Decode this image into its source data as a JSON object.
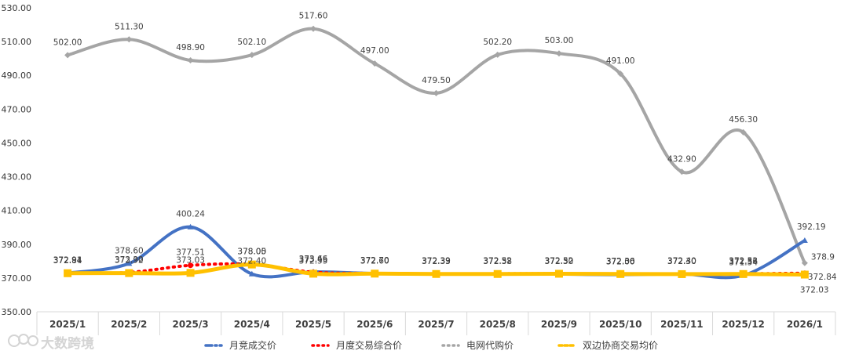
{
  "chart_data": {
    "type": "line",
    "categories": [
      "2025/1",
      "2025/2",
      "2025/3",
      "2025/4",
      "2025/5",
      "2025/6",
      "2025/7",
      "2025/8",
      "2025/9",
      "2025/10",
      "2025/11",
      "2025/12",
      "2026/1"
    ],
    "ylim": [
      350,
      530
    ],
    "yticks": [
      350,
      370,
      390,
      410,
      430,
      450,
      470,
      490,
      510,
      530
    ],
    "ytick_labels": [
      "350.00",
      "370.00",
      "390.00",
      "410.00",
      "430.00",
      "450.00",
      "470.00",
      "490.00",
      "510.00",
      "530.00"
    ],
    "grid": false,
    "legend_position": "bottom",
    "series": [
      {
        "name": "月竞成交价",
        "color": "#4472C4",
        "values": [
          372.94,
          378.6,
          400.24,
          372.4,
          373.66,
          372.7,
          372.39,
          372.52,
          372.3,
          372.0,
          372.4,
          371.54,
          392.19
        ],
        "labels": [
          "372.94",
          "378.60",
          "400.24",
          "372.40",
          "373.66",
          "372.70",
          "372.39",
          "372.52",
          "372.30",
          "372.00",
          "372.40",
          "371.54",
          "392.19"
        ]
      },
      {
        "name": "月度交易综合价",
        "color": "#FF0000",
        "values": [
          372.91,
          373.3,
          377.51,
          378.05,
          373.45,
          372.7,
          372.33,
          372.52,
          372.52,
          372.3,
          372.3,
          372.52,
          372.84
        ],
        "labels": [
          "372.91",
          "373.30",
          "377.51",
          "378.05",
          "373.45",
          "372.70",
          "372.33",
          "372.52",
          "372.52",
          "372.30",
          "372.30",
          "372.52",
          "372.84"
        ]
      },
      {
        "name": "电网代购价",
        "color": "#A5A5A5",
        "values": [
          502.0,
          511.3,
          498.9,
          502.1,
          517.6,
          497.0,
          479.5,
          502.2,
          503.0,
          491.0,
          432.9,
          456.3,
          378.9
        ],
        "labels": [
          "502.00",
          "511.30",
          "498.90",
          "502.10",
          "517.60",
          "497.00",
          "479.50",
          "502.20",
          "503.00",
          "491.00",
          "432.90",
          "456.30",
          "378.9"
        ]
      },
      {
        "name": "双边协商交易均价",
        "color": "#FFC000",
        "values": [
          372.84,
          372.92,
          373.03,
          378.0,
          372.55,
          372.6,
          372.39,
          372.38,
          372.52,
          372.36,
          372.3,
          372.36,
          372.03
        ],
        "labels": [
          "372.84",
          "372.92",
          "373.03",
          "378.00",
          "372.55",
          "372.60",
          "372.39",
          "372.38",
          "372.52",
          "372.36",
          "372.30",
          "372.36",
          "372.03"
        ]
      }
    ]
  },
  "watermark": {
    "text": "大数跨境"
  }
}
